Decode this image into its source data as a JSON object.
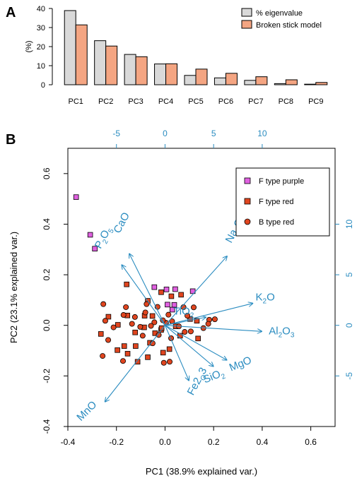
{
  "panel_labels": [
    "A",
    "B"
  ],
  "colors": {
    "eigen_fill": "#d9d9d9",
    "broken_fill": "#f4a582",
    "arrow": "#2a8cc0",
    "purple": "#e060e0",
    "red": "#e0451f",
    "axis": "#000000"
  },
  "chart_data": [
    {
      "type": "bar",
      "panel": "A",
      "categories": [
        "PC1",
        "PC2",
        "PC3",
        "PC4",
        "PC5",
        "PC6",
        "PC7",
        "PC8",
        "PC9"
      ],
      "series": [
        {
          "name": "% eigenvalue",
          "values": [
            38.9,
            23.1,
            15.9,
            10.9,
            4.9,
            3.6,
            2.3,
            0.6,
            0.3
          ]
        },
        {
          "name": "Broken stick model",
          "values": [
            31.4,
            20.3,
            14.7,
            11.0,
            8.2,
            6.0,
            4.2,
            2.6,
            1.2
          ]
        }
      ],
      "ylabel": "(%)",
      "ylim": [
        0,
        40
      ],
      "yticks": [
        0,
        10,
        20,
        30,
        40
      ],
      "legend_position": "top-right"
    },
    {
      "type": "scatter",
      "panel": "B",
      "xlabel": "PC1 (38.9% explained var.)",
      "ylabel": "PC2 (23.1% explained var.)",
      "xlim": [
        -0.4,
        0.7
      ],
      "ylim": [
        -0.4,
        0.7
      ],
      "xticks": [
        "-0.4",
        "-0.2",
        "0.0",
        "0.2",
        "0.4",
        "0.6"
      ],
      "yticks": [
        "-0.4",
        "-0.2",
        "0.0",
        "0.2",
        "0.4",
        "0.6"
      ],
      "top_ticks": [
        "-5",
        "0",
        "5",
        "10"
      ],
      "right_ticks": [
        "-5",
        "0",
        "5",
        "10"
      ],
      "legend_position": "top-right",
      "series": [
        {
          "name": "F type purple",
          "marker": "square",
          "points": [
            [
              -0.366,
              0.507
            ],
            [
              -0.308,
              0.358
            ],
            [
              -0.289,
              0.303
            ],
            [
              -0.044,
              0.151
            ],
            [
              0.006,
              0.142
            ],
            [
              0.042,
              0.143
            ],
            [
              0.114,
              0.135
            ],
            [
              0.01,
              0.082
            ],
            [
              0.038,
              0.081
            ],
            [
              0.03,
              0.062
            ]
          ]
        },
        {
          "name": "F type red",
          "marker": "square",
          "points": [
            [
              -0.158,
              0.162
            ],
            [
              -0.016,
              0.131
            ],
            [
              0.026,
              0.115
            ],
            [
              0.066,
              0.121
            ],
            [
              -0.071,
              0.097
            ],
            [
              -0.084,
              0.038
            ],
            [
              -0.233,
              0.034
            ],
            [
              -0.155,
              0.039
            ],
            [
              -0.052,
              0.037
            ],
            [
              0.103,
              0.025
            ],
            [
              -0.194,
              0.002
            ],
            [
              -0.086,
              -0.008
            ],
            [
              -0.016,
              -0.018
            ],
            [
              0.044,
              -0.004
            ],
            [
              0.131,
              0.018
            ],
            [
              -0.264,
              -0.034
            ],
            [
              -0.123,
              -0.028
            ],
            [
              -0.041,
              -0.031
            ],
            [
              0.062,
              -0.041
            ],
            [
              -0.014,
              -0.011
            ],
            [
              -0.168,
              -0.082
            ],
            [
              -0.121,
              -0.082
            ],
            [
              -0.196,
              -0.098
            ],
            [
              -0.062,
              -0.069
            ],
            [
              -0.154,
              -0.112
            ],
            [
              -0.071,
              -0.126
            ],
            [
              -0.008,
              -0.108
            ],
            [
              -0.113,
              -0.144
            ],
            [
              0.018,
              -0.094
            ],
            [
              0.136,
              -0.052
            ]
          ]
        },
        {
          "name": "B type red",
          "marker": "circle",
          "points": [
            [
              -0.254,
              0.084
            ],
            [
              -0.161,
              0.072
            ],
            [
              -0.081,
              0.051
            ],
            [
              -0.076,
              0.084
            ],
            [
              -0.031,
              0.073
            ],
            [
              0.076,
              0.072
            ],
            [
              0.118,
              0.071
            ],
            [
              -0.171,
              0.041
            ],
            [
              -0.124,
              0.033
            ],
            [
              0.014,
              0.042
            ],
            [
              0.092,
              0.038
            ],
            [
              -0.246,
              0.018
            ],
            [
              -0.136,
              0.006
            ],
            [
              -0.044,
              0.012
            ],
            [
              0.029,
              0.016
            ],
            [
              0.182,
              0.022
            ],
            [
              0.205,
              0.024
            ],
            [
              -0.212,
              -0.008
            ],
            [
              -0.102,
              -0.006
            ],
            [
              -0.058,
              -0.002
            ],
            [
              0.057,
              -0.004
            ],
            [
              0.158,
              -0.011
            ],
            [
              0.178,
              0.006
            ],
            [
              -0.234,
              -0.058
            ],
            [
              -0.092,
              -0.041
            ],
            [
              -0.026,
              -0.038
            ],
            [
              0.081,
              -0.026
            ],
            [
              0.106,
              -0.024
            ],
            [
              -0.257,
              -0.121
            ],
            [
              -0.173,
              -0.141
            ],
            [
              -0.051,
              -0.071
            ],
            [
              0.025,
              -0.051
            ],
            [
              -0.005,
              -0.148
            ],
            [
              0.019,
              -0.144
            ],
            [
              0.004,
              0.01
            ],
            [
              -0.009,
              0.02
            ]
          ]
        }
      ],
      "loadings": [
        {
          "label": "CaO",
          "dx": -0.147,
          "dy": 0.283,
          "sub": [
            false,
            false,
            false
          ]
        },
        {
          "label": "P2O5",
          "dx": -0.178,
          "dy": 0.239,
          "sub": [
            false,
            true,
            false,
            true
          ]
        },
        {
          "label": "Na2O",
          "dx": 0.255,
          "dy": 0.273,
          "sub": [
            false,
            false,
            true,
            false
          ]
        },
        {
          "label": "K2O",
          "dx": 0.361,
          "dy": 0.087,
          "sub": [
            false,
            true,
            false
          ]
        },
        {
          "label": "TiO2",
          "dx": 0.168,
          "dy": 0.032,
          "sub": [
            false,
            false,
            false,
            true
          ]
        },
        {
          "label": "Al2O3",
          "dx": 0.398,
          "dy": -0.024,
          "sub": [
            false,
            false,
            true,
            false,
            true
          ]
        },
        {
          "label": "MgO",
          "dx": 0.254,
          "dy": -0.137,
          "sub": [
            false,
            false,
            false
          ]
        },
        {
          "label": "SiO2",
          "dx": 0.199,
          "dy": -0.162,
          "sub": [
            false,
            false,
            false,
            true
          ]
        },
        {
          "label": "Fe2O3",
          "dx": 0.098,
          "dy": -0.218,
          "sub": [
            false,
            false,
            false,
            true,
            false,
            true
          ]
        },
        {
          "label": "MnO",
          "dx": -0.247,
          "dy": -0.302,
          "sub": [
            false,
            false,
            false
          ]
        }
      ]
    }
  ]
}
